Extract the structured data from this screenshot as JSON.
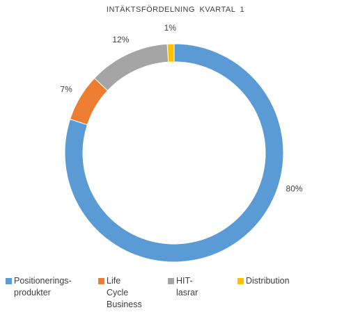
{
  "chart_data": {
    "type": "pie",
    "variant": "donut",
    "title": "INTÄKTSFÖRDELNING  KVARTAL  1",
    "slices": [
      {
        "name": "Positionerings-\nprodukter",
        "value": 80,
        "label": "80%",
        "color": "#5B9BD5"
      },
      {
        "name": "Life Cycle\nBusiness",
        "value": 7,
        "label": "7%",
        "color": "#ED7D31"
      },
      {
        "name": "HIT-lasrar",
        "value": 12,
        "label": "12%",
        "color": "#A5A5A5"
      },
      {
        "name": "Distribution",
        "value": 1,
        "label": "1%",
        "color": "#FFC000"
      }
    ],
    "legend_position": "bottom"
  }
}
